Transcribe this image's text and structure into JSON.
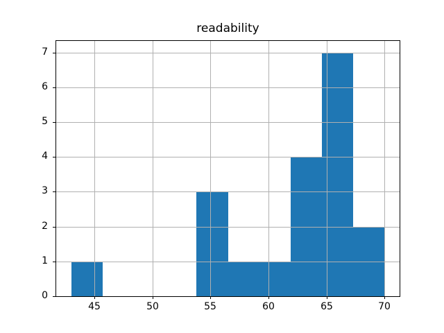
{
  "chart_data": {
    "type": "bar",
    "subtype": "histogram",
    "title": "readability",
    "xlabel": "",
    "ylabel": "",
    "bin_edges": [
      43.0,
      45.7,
      48.4,
      51.1,
      53.8,
      56.5,
      59.2,
      61.9,
      64.6,
      67.3,
      70.0
    ],
    "counts": [
      1,
      0,
      0,
      0,
      3,
      1,
      1,
      4,
      7,
      2
    ],
    "xticks": [
      45,
      50,
      55,
      60,
      65,
      70
    ],
    "yticks": [
      0,
      1,
      2,
      3,
      4,
      5,
      6,
      7
    ],
    "xlim": [
      41.65,
      71.35
    ],
    "ylim": [
      0,
      7.35
    ],
    "grid": true,
    "legend": "none",
    "bar_color": "#1f77b4",
    "grid_color": "#b0b0b0",
    "axis_color": "#000000",
    "background_color": "#ffffff"
  }
}
